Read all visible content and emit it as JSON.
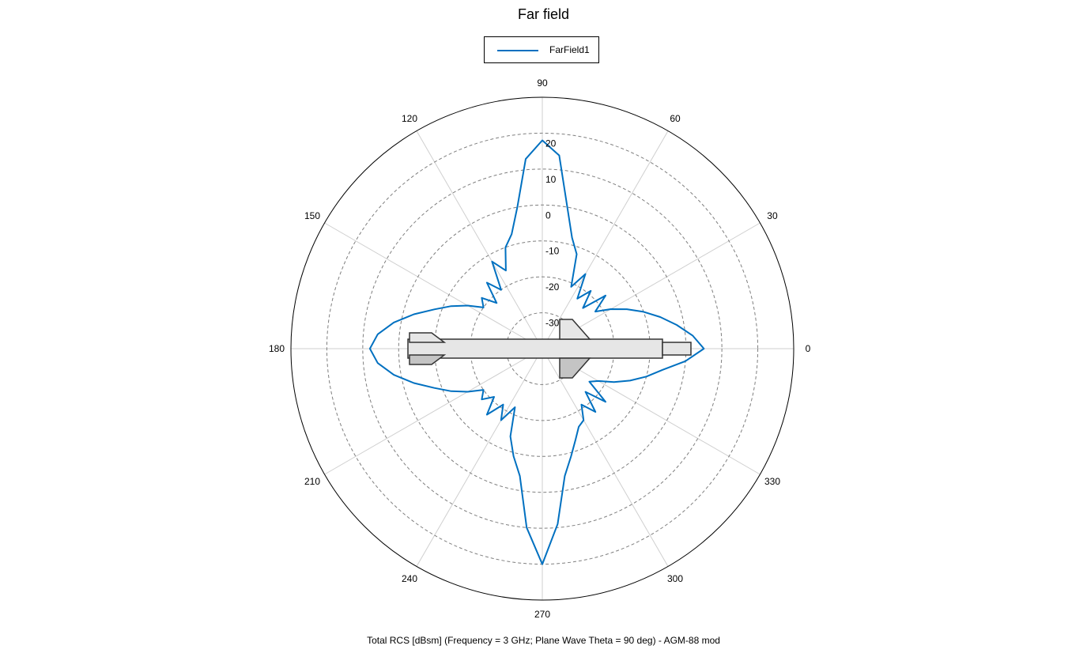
{
  "chart_data": {
    "type": "polar",
    "title": "Far field",
    "caption": "Total RCS [dBsm] (Frequency = 3 GHz; Plane Wave Theta = 90 deg) - AGM-88 mod",
    "legend": {
      "position": "top-center",
      "entries": [
        "FarField1"
      ]
    },
    "angle_ticks": [
      0,
      30,
      60,
      90,
      120,
      150,
      180,
      210,
      240,
      270,
      300,
      330
    ],
    "angle_tick_labels": [
      "0",
      "30",
      "60",
      "90",
      "120",
      "150",
      "180",
      "210",
      "240",
      "270",
      "300",
      "330"
    ],
    "r_ticks": [
      -30,
      -20,
      -10,
      0,
      10,
      20
    ],
    "r_tick_labels": [
      "-30",
      "-20",
      "-10",
      "0",
      "10",
      "20"
    ],
    "r_range": [
      -40,
      30
    ],
    "grid": true,
    "series": [
      {
        "name": "FarField1",
        "color": "#0070c0",
        "theta_deg": [
          0,
          5,
          10,
          15,
          20,
          25,
          30,
          35,
          40,
          45,
          50,
          55,
          60,
          65,
          70,
          75,
          80,
          85,
          90,
          95,
          100,
          105,
          110,
          115,
          120,
          125,
          130,
          135,
          140,
          145,
          150,
          155,
          160,
          165,
          170,
          175,
          180,
          185,
          190,
          195,
          200,
          205,
          210,
          215,
          220,
          225,
          230,
          235,
          240,
          245,
          250,
          255,
          260,
          265,
          270,
          275,
          280,
          285,
          290,
          295,
          300,
          305,
          310,
          315,
          320,
          325,
          330,
          335,
          340,
          345,
          350,
          355
        ],
        "rcs_dbsm": [
          5,
          2,
          -2,
          -6,
          -10,
          -14,
          -18,
          -22,
          -17,
          -24,
          -19,
          -23,
          -16,
          -21,
          -12,
          -8,
          0,
          14,
          18,
          13,
          0,
          -7,
          -10,
          -16,
          -12,
          -20,
          -16,
          -22,
          -18,
          -20,
          -16,
          -12,
          -8,
          -3,
          2,
          6,
          8,
          6,
          2,
          -3,
          -8,
          -12,
          -16,
          -20,
          -18,
          -21,
          -16,
          -21,
          -17,
          -22,
          -14,
          -9,
          -4,
          10,
          20,
          9,
          -4,
          -9,
          -13,
          -16,
          -17,
          -21,
          -17,
          -23,
          -17,
          -24,
          -22,
          -18,
          -14,
          -10,
          -6,
          0
        ]
      }
    ]
  }
}
